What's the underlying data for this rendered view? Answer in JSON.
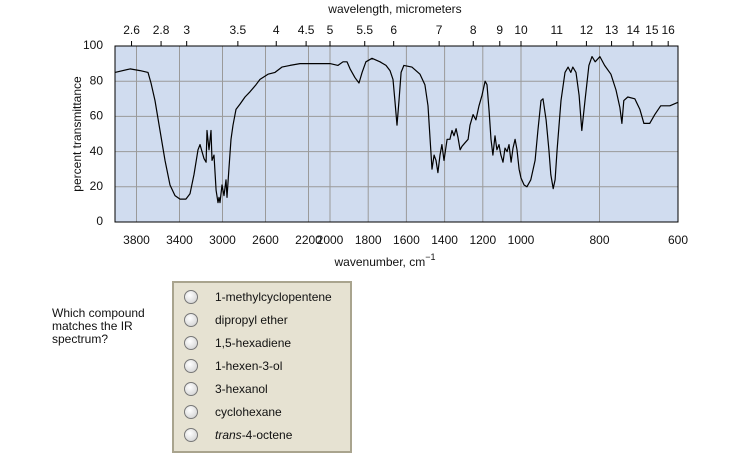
{
  "chart_data": {
    "type": "line",
    "x2_label": "wavelength, micrometers",
    "x_label": "wavenumber, cm",
    "x_label_superscript": "−1",
    "y_label": "percent transmittance",
    "xlim": [
      4000,
      600
    ],
    "xticks": [
      3800,
      3400,
      3000,
      2600,
      2200,
      2000,
      1800,
      1600,
      1400,
      1200,
      1000,
      800,
      600
    ],
    "x2ticks": [
      2.6,
      2.8,
      3,
      3.5,
      4,
      4.5,
      5,
      5.5,
      6,
      7,
      8,
      9,
      10,
      11,
      12,
      13,
      14,
      15,
      16
    ],
    "ylim": [
      0,
      100
    ],
    "yticks": [
      0,
      20,
      40,
      60,
      80,
      100
    ],
    "grid": true,
    "x": [
      4000,
      3860,
      3767,
      3693,
      3665,
      3628,
      3581,
      3535,
      3488,
      3442,
      3395,
      3340,
      3302,
      3265,
      3228,
      3209,
      3172,
      3153,
      3144,
      3126,
      3107,
      3098,
      3079,
      3060,
      3042,
      3033,
      3023,
      3005,
      2986,
      2967,
      2958,
      2940,
      2921,
      2902,
      2874,
      2837,
      2791,
      2744,
      2688,
      2651,
      2577,
      2512,
      2447,
      2372,
      2279,
      2140,
      2000,
      1958,
      1932,
      1911,
      1895,
      1869,
      1848,
      1832,
      1812,
      1780,
      1738,
      1707,
      1686,
      1670,
      1660,
      1649,
      1639,
      1628,
      1613,
      1571,
      1529,
      1503,
      1487,
      1476,
      1466,
      1455,
      1445,
      1435,
      1424,
      1414,
      1403,
      1387,
      1372,
      1361,
      1351,
      1340,
      1330,
      1319,
      1309,
      1293,
      1277,
      1267,
      1251,
      1236,
      1220,
      1204,
      1188,
      1178,
      1167,
      1157,
      1147,
      1136,
      1126,
      1115,
      1105,
      1094,
      1084,
      1073,
      1063,
      1052,
      1042,
      1031,
      1021,
      1010,
      1000,
      992,
      985,
      975,
      964,
      957,
      949,
      944,
      936,
      929,
      924,
      918,
      913,
      908,
      898,
      888,
      880,
      873,
      868,
      860,
      852,
      845,
      837,
      827,
      819,
      811,
      799,
      787,
      771,
      758,
      748,
      743,
      738,
      728,
      710,
      697,
      687,
      672,
      659,
      644,
      621,
      600
    ],
    "series": [
      {
        "color": "#000000",
        "values": [
          85,
          87,
          86,
          85,
          79,
          69,
          52,
          35,
          21,
          15,
          13,
          13,
          16,
          27,
          41,
          44,
          36,
          34,
          52,
          41,
          52,
          35,
          38,
          18,
          11,
          14,
          11,
          21,
          15,
          24,
          14,
          30,
          47,
          55,
          64,
          67,
          71,
          74,
          78,
          81,
          84,
          85,
          88,
          89,
          90,
          90,
          90,
          89,
          91,
          91,
          87,
          82,
          79,
          85,
          91,
          93,
          91,
          89,
          86,
          81,
          69,
          55,
          69,
          85,
          89,
          88,
          84,
          78,
          66,
          47,
          30,
          38,
          35,
          28,
          38,
          44,
          35,
          47,
          47,
          52,
          49,
          53,
          48,
          41,
          43,
          45,
          47,
          55,
          61,
          58,
          66,
          72,
          80,
          78,
          63,
          47,
          38,
          49,
          41,
          44,
          38,
          34,
          42,
          40,
          44,
          34,
          42,
          47,
          41,
          30,
          25,
          21,
          20,
          24,
          35,
          52,
          69,
          70,
          58,
          41,
          27,
          19,
          24,
          41,
          69,
          85,
          88,
          85,
          88,
          85,
          72,
          52,
          69,
          89,
          94,
          91,
          94,
          89,
          84,
          75,
          65,
          56,
          69,
          71,
          70,
          64,
          56,
          56,
          61,
          66,
          66,
          68
        ]
      }
    ]
  },
  "question": {
    "text": "Which compound matches the IR spectrum?",
    "options": [
      {
        "text": "1-methylcyclopentene"
      },
      {
        "text": "dipropyl ether"
      },
      {
        "text": "1,5-hexadiene"
      },
      {
        "text": "1-hexen-3-ol"
      },
      {
        "text": "3-hexanol"
      },
      {
        "text": "cyclohexane"
      },
      {
        "italic": "trans",
        "text": "-4-octene"
      }
    ]
  }
}
